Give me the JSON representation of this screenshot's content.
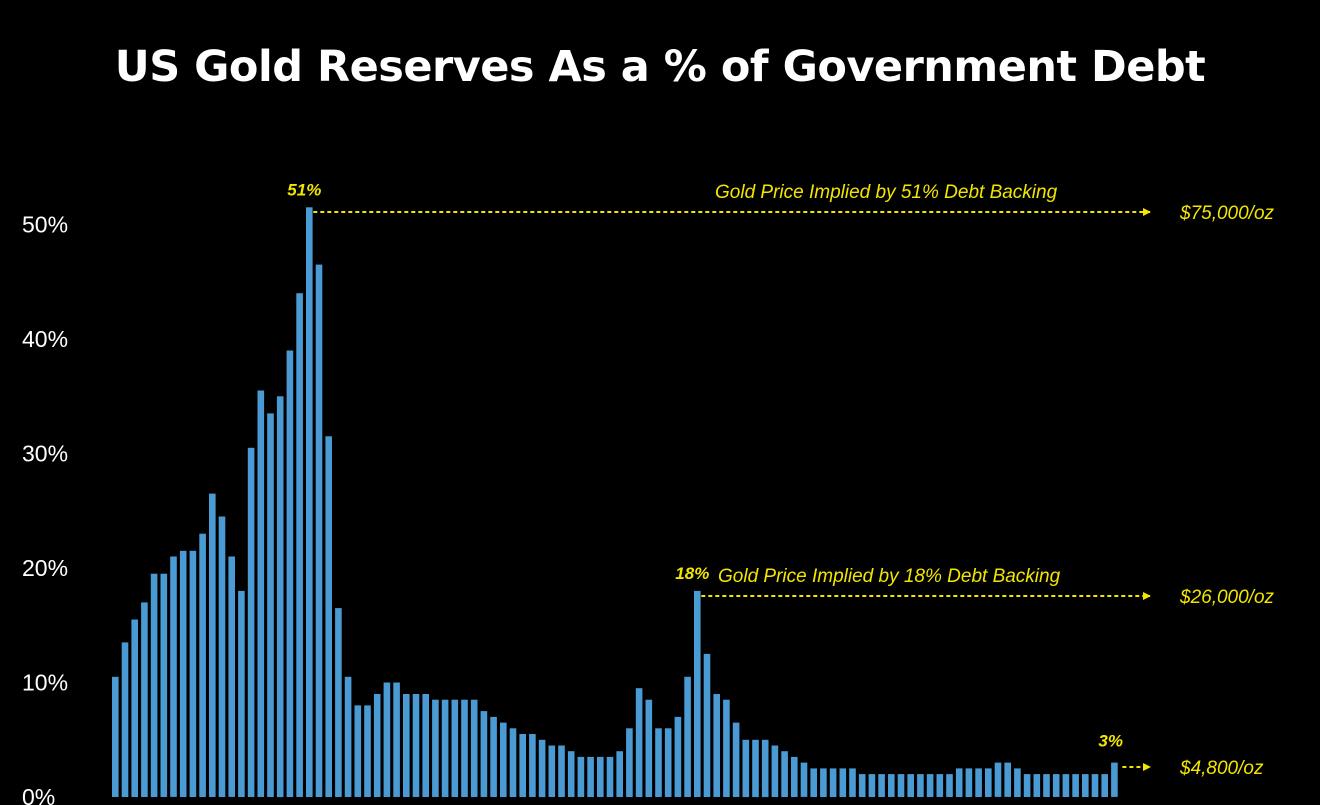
{
  "colors": {
    "background": "#000000",
    "bar": "#4a9ad4",
    "annotation": "#f2e600",
    "text": "#ffffff"
  },
  "chart_data": {
    "type": "bar",
    "title": "US Gold Reserves As a % of Government Debt",
    "xlabel": "",
    "ylabel": "",
    "ylim": [
      0,
      55
    ],
    "y_ticks": [
      "0%",
      "10%",
      "20%",
      "30%",
      "40%",
      "50%"
    ],
    "grid": false,
    "legend": "none",
    "values": [
      10.5,
      13.5,
      15.5,
      17,
      19.5,
      19.5,
      21,
      21.5,
      21.5,
      23,
      26.5,
      24.5,
      21,
      18,
      30.5,
      35.5,
      33.5,
      35,
      39,
      44,
      51.5,
      46.5,
      31.5,
      16.5,
      10.5,
      8,
      8,
      9,
      10,
      10,
      9,
      9,
      9,
      8.5,
      8.5,
      8.5,
      8.5,
      8.5,
      7.5,
      7,
      6.5,
      6,
      5.5,
      5.5,
      5,
      4.5,
      4.5,
      4,
      3.5,
      3.5,
      3.5,
      3.5,
      4,
      6,
      9.5,
      8.5,
      6,
      6,
      7,
      10.5,
      18,
      12.5,
      9,
      8.5,
      6.5,
      5,
      5,
      5,
      4.5,
      4,
      3.5,
      3,
      2.5,
      2.5,
      2.5,
      2.5,
      2.5,
      2,
      2,
      2,
      2,
      2,
      2,
      2,
      2,
      2,
      2,
      2.5,
      2.5,
      2.5,
      2.5,
      3,
      3,
      2.5,
      2,
      2,
      2,
      2,
      2,
      2,
      2,
      2,
      2,
      3
    ],
    "annotations": {
      "peak1": {
        "label": "51%",
        "text": "Gold Price Implied by 51% Debt Backing",
        "value_label": "$75,000/oz"
      },
      "peak2": {
        "label": "18%",
        "text": "Gold Price Implied by 18% Debt Backing",
        "value_label": "$26,000/oz"
      },
      "current": {
        "label": "3%",
        "value_label": "$4,800/oz"
      }
    }
  }
}
